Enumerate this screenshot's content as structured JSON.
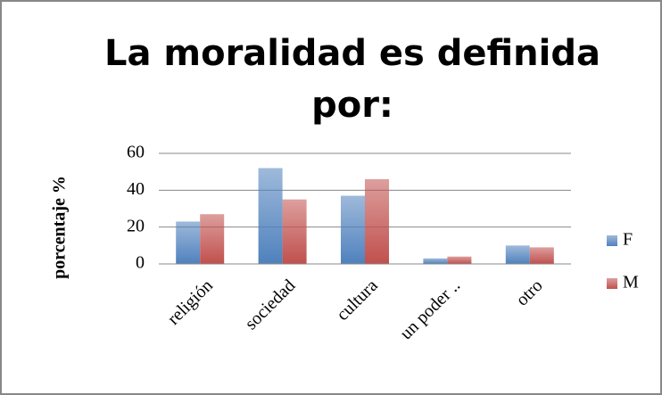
{
  "chart_data": {
    "type": "bar",
    "title": [
      "La moralidad es definida",
      "por:"
    ],
    "y_label": "porcentaje %",
    "categories": [
      "religión",
      "sociedad",
      "cultura",
      "un poder ..",
      "otro"
    ],
    "series": [
      {
        "name": "F",
        "color": "#4f81bd",
        "values": [
          23,
          52,
          37,
          3,
          10
        ]
      },
      {
        "name": "M",
        "color": "#c0504d",
        "values": [
          27,
          35,
          46,
          4,
          9
        ]
      }
    ],
    "ylim": [
      0,
      60
    ],
    "yticks": [
      0,
      20,
      40,
      60
    ],
    "grid": true,
    "legend": "right"
  }
}
